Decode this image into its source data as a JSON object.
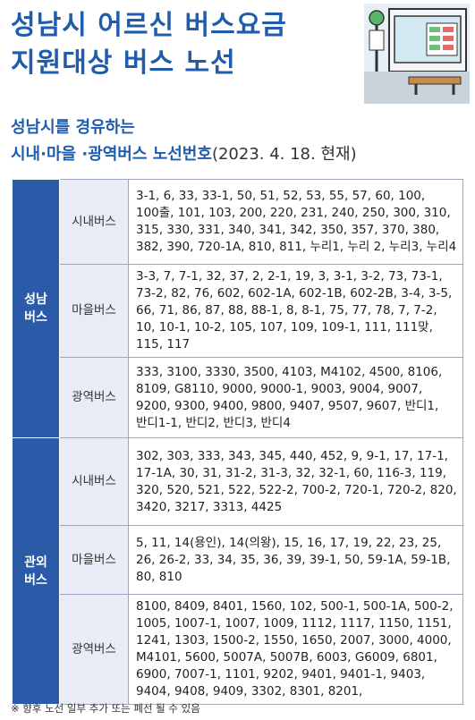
{
  "header": {
    "title": [
      "성남시 어르신 버스요금",
      "지원대상 버스 노선"
    ],
    "subtitle": [
      "성남시를 경유하는",
      "시내·마을 ·광역버스 노선번호"
    ],
    "date": "(2023. 4. 18. 현재)"
  },
  "table": {
    "groups": [
      {
        "label": [
          "성남",
          "버스"
        ],
        "rows": [
          {
            "type": "시내버스",
            "routes": "3-1, 6, 33, 33-1, 50, 51, 52, 53, 55, 57, 60, 100, 100출, 101, 103, 200, 220, 231, 240, 250, 300, 310, 315, 330, 331, 340, 341, 342, 350, 357, 370, 380, 382, 390, 720-1A, 810, 811, 누리1, 누리 2, 누리3, 누리4"
          },
          {
            "type": "마을버스",
            "routes": "3-3, 7, 7-1, 32, 37, 2, 2-1, 19, 3, 3-1, 3-2, 73, 73-1, 73-2, 82, 76, 602, 602-1A, 602-1B, 602-2B, 3-4, 3-5, 66, 71, 86, 87, 88, 88-1, 8, 8-1, 75, 77, 78, 7, 7-2, 10, 10-1, 10-2, 105, 107, 109, 109-1, 111, 111맞, 115, 117"
          },
          {
            "type": "광역버스",
            "routes": "333, 3100, 3330, 3500, 4103, M4102, 4500, 8106, 8109, G8110, 9000, 9000-1, 9003, 9004, 9007, 9200, 9300, 9400, 9800, 9407, 9507, 9607, 반디1, 반디1-1, 반디2,  반디3, 반디4"
          }
        ]
      },
      {
        "label": [
          "관외",
          "버스"
        ],
        "rows": [
          {
            "type": "시내버스",
            "routes": "302, 303, 333, 343, 345, 440, 452, 9, 9-1, 17, 17-1, 17-1A, 30, 31, 31-2, 31-3, 32, 32-1, 60,  116-3, 119, 320, 520, 521, 522, 522-2, 700-2, 720-1, 720-2, 820, 3420, 3217, 3313, 4425"
          },
          {
            "type": "마을버스",
            "routes": "5, 11, 14(용인), 14(의왕), 15, 16, 17, 19, 22, 23, 25, 26, 26-2, 33, 34, 35, 36, 39, 39-1, 50, 59-1A, 59-1B, 80, 810"
          },
          {
            "type": "광역버스",
            "routes": "8100, 8409, 8401, 1560, 102, 500-1, 500-1A,  500-2, 1005, 1007-1, 1007, 1009, 1112, 1117, 1150, 1151, 1241, 1303, 1500-2, 1550, 1650, 2007, 3000, 4000, M4101, 5600, 5007A, 5007B, 6003, G6009, 6801, 6900, 7007-1, 1101, 9202, 9401, 9401-1, 9403, 9404, 9408, 9409, 3302, 8301, 8201,"
          }
        ]
      }
    ]
  },
  "footnote": "※ 향후 노선 일부 추가 또는 폐선 될 수 있음"
}
